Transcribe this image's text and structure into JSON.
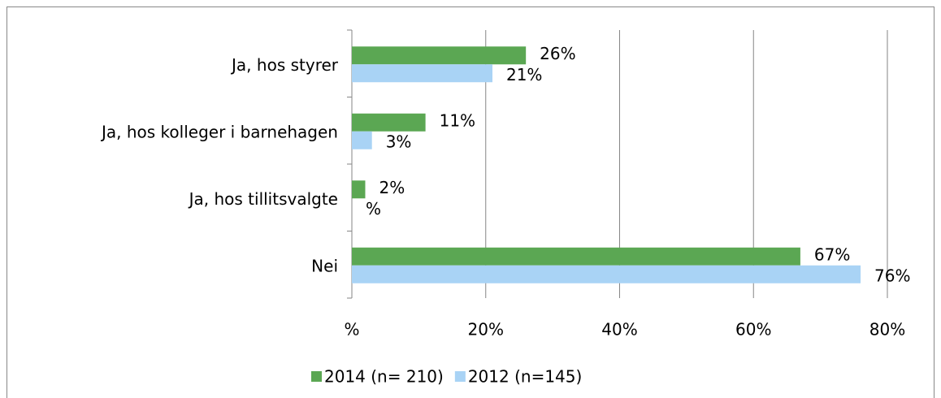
{
  "chart_data": {
    "type": "hbar",
    "categories": [
      "Ja, hos styrer",
      "Ja, hos kolleger i barnehagen",
      "Ja, hos tillitsvalgte",
      "Nei"
    ],
    "series": [
      {
        "name": "2014 (n= 210)",
        "color": "#5ba753",
        "values": [
          26,
          11,
          2,
          67
        ],
        "value_labels": [
          "26%",
          "11%",
          "2%",
          "67%"
        ]
      },
      {
        "name": "2012 (n=145)",
        "color": "#a9d3f5",
        "values": [
          21,
          3,
          0,
          76
        ],
        "value_labels": [
          "21%",
          "3%",
          "%",
          "76%"
        ]
      }
    ],
    "xlim": [
      0,
      80
    ],
    "xticks": [
      {
        "value": 0,
        "label": "%"
      },
      {
        "value": 20,
        "label": "20%"
      },
      {
        "value": 40,
        "label": "40%"
      },
      {
        "value": 60,
        "label": "60%"
      },
      {
        "value": 80,
        "label": "80%"
      }
    ],
    "grid": true,
    "legend": "bottom"
  }
}
